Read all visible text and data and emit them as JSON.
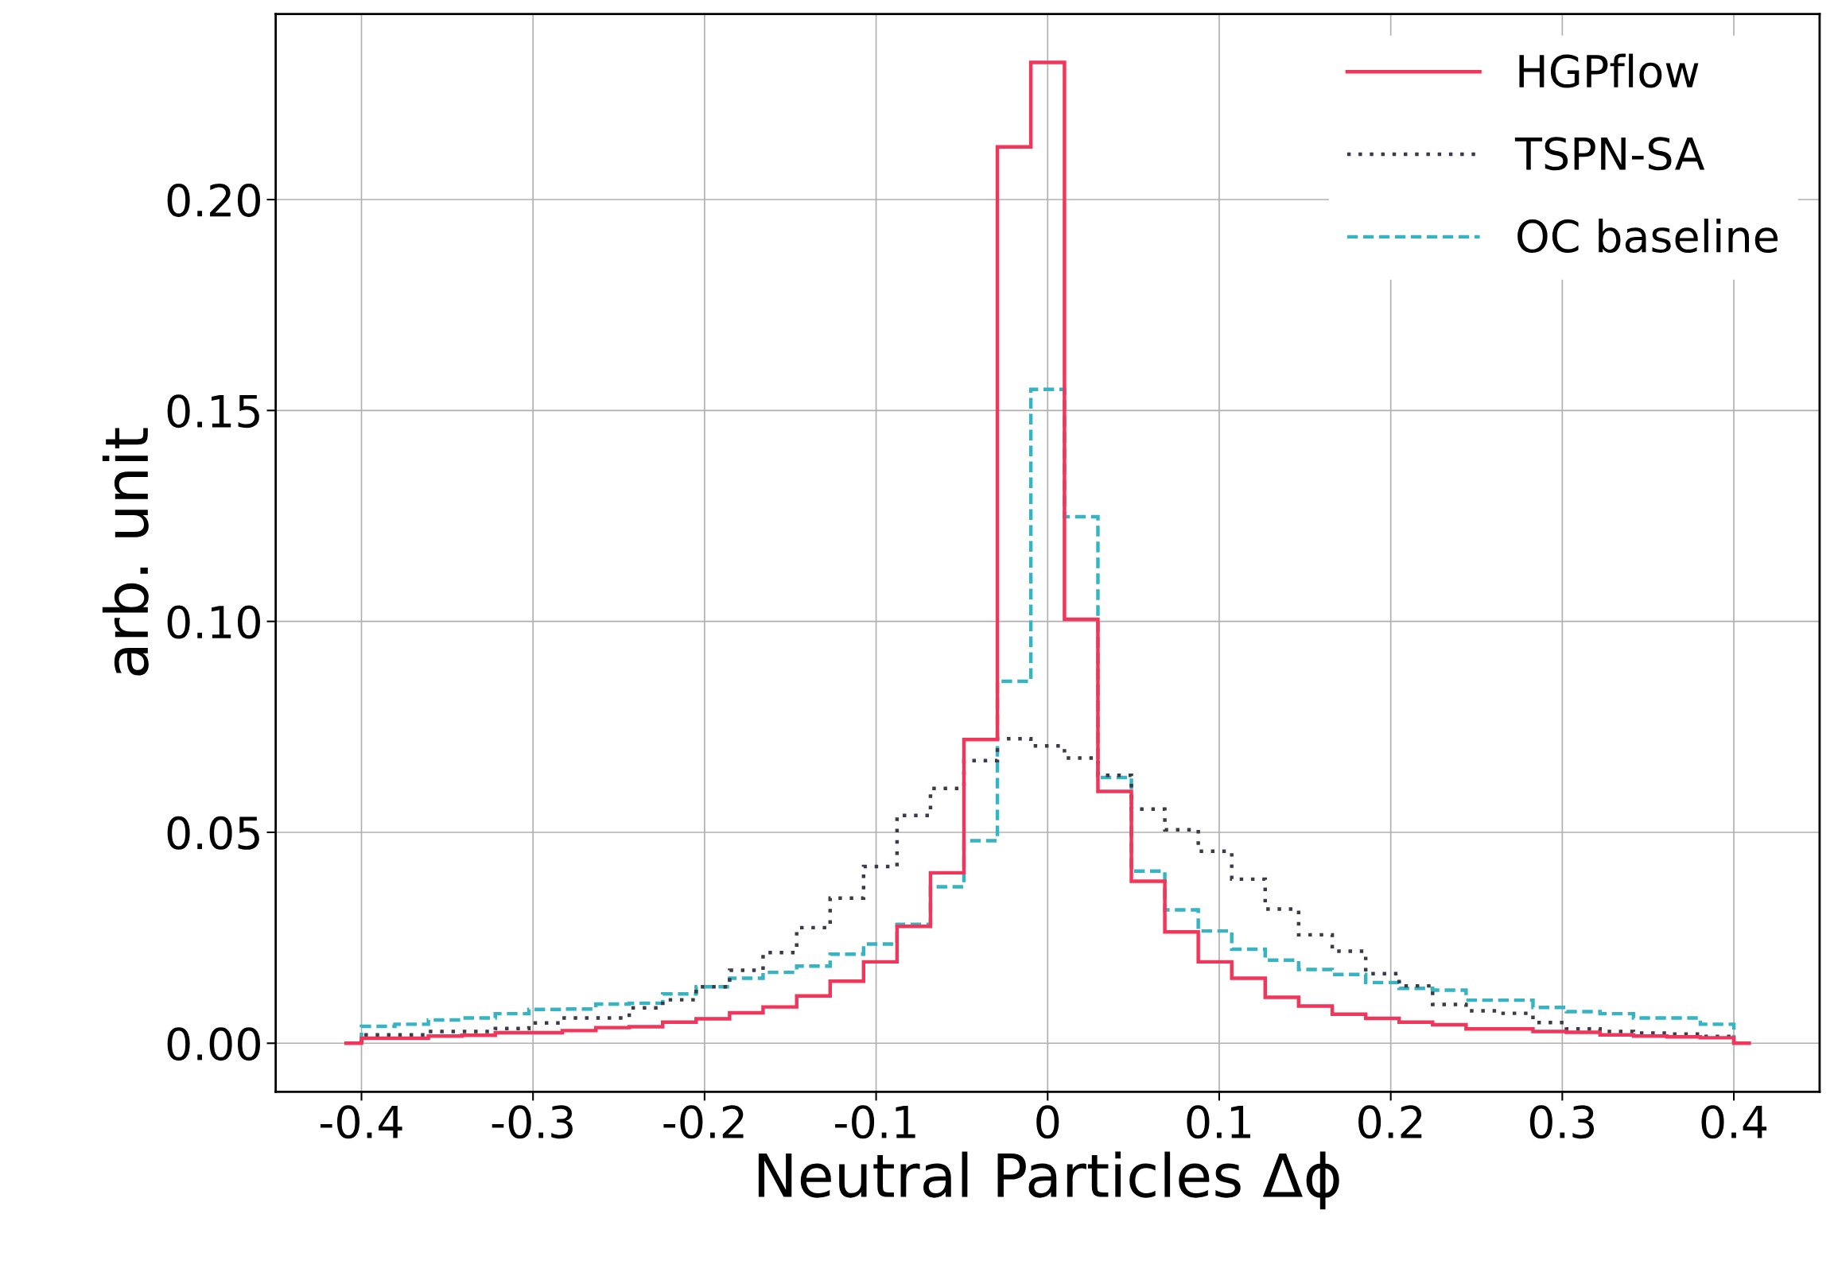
{
  "chart_data": {
    "type": "histogram",
    "xlabel": "Neutral Particles Δϕ",
    "ylabel": "arb. unit",
    "bins": [
      -0.4,
      -0.3805,
      -0.361,
      -0.3415,
      -0.322,
      -0.3024,
      -0.2829,
      -0.2634,
      -0.2439,
      -0.2244,
      -0.2049,
      -0.1854,
      -0.1659,
      -0.1463,
      -0.1268,
      -0.1073,
      -0.0878,
      -0.0683,
      -0.0488,
      -0.0293,
      -0.0098,
      0.0098,
      0.0293,
      0.0488,
      0.0683,
      0.0878,
      0.1073,
      0.1268,
      0.1463,
      0.1659,
      0.1854,
      0.2049,
      0.2244,
      0.2439,
      0.2634,
      0.2829,
      0.3024,
      0.322,
      0.3415,
      0.361,
      0.3805,
      0.4
    ],
    "series": [
      {
        "name": "HGPflow",
        "color": "#f0365a",
        "line_style": "solid",
        "bins": [
          -0.41,
          -0.4,
          -0.3805,
          -0.361,
          -0.3415,
          -0.322,
          -0.3024,
          -0.2829,
          -0.2634,
          -0.2439,
          -0.2244,
          -0.2049,
          -0.1854,
          -0.1659,
          -0.1463,
          -0.1268,
          -0.1073,
          -0.0878,
          -0.0683,
          -0.0488,
          -0.0293,
          -0.0098,
          0.0098,
          0.0293,
          0.0488,
          0.0683,
          0.0878,
          0.1073,
          0.1268,
          0.1463,
          0.1659,
          0.1854,
          0.2049,
          0.2244,
          0.2439,
          0.2634,
          0.2829,
          0.3024,
          0.322,
          0.3415,
          0.361,
          0.3805,
          0.4,
          0.41
        ],
        "values": [
          0,
          0.0012,
          0.0012,
          0.0017,
          0.0019,
          0.0025,
          0.0025,
          0.003,
          0.0037,
          0.0039,
          0.005,
          0.0058,
          0.0072,
          0.0086,
          0.0112,
          0.0147,
          0.0193,
          0.0277,
          0.0404,
          0.072,
          0.2125,
          0.2325,
          0.1005,
          0.0597,
          0.0384,
          0.0264,
          0.0193,
          0.0154,
          0.0109,
          0.0088,
          0.0069,
          0.0059,
          0.005,
          0.0044,
          0.0034,
          0.0034,
          0.0028,
          0.0026,
          0.002,
          0.0017,
          0.0015,
          0.0013,
          0
        ]
      },
      {
        "name": "TSPN-SA",
        "color": "#393b47",
        "line_style": "dotted",
        "values": [
          0.002,
          0.002,
          0.0028,
          0.0028,
          0.0035,
          0.0048,
          0.006,
          0.006,
          0.0084,
          0.0103,
          0.0134,
          0.0173,
          0.0215,
          0.0274,
          0.0344,
          0.0419,
          0.054,
          0.0604,
          0.067,
          0.0722,
          0.0705,
          0.0676,
          0.0635,
          0.0555,
          0.0506,
          0.0455,
          0.0389,
          0.0318,
          0.0257,
          0.0218,
          0.0165,
          0.0136,
          0.0092,
          0.0077,
          0.0071,
          0.0049,
          0.0034,
          0.0028,
          0.0024,
          0.0022,
          0.0016
        ]
      },
      {
        "name": "OC baseline",
        "color": "#36b4c3",
        "line_style": "dashed",
        "values": [
          0.004,
          0.0045,
          0.0055,
          0.006,
          0.007,
          0.008,
          0.0081,
          0.0093,
          0.0095,
          0.0117,
          0.0134,
          0.0154,
          0.0168,
          0.0183,
          0.0211,
          0.0235,
          0.0282,
          0.0371,
          0.048,
          0.0858,
          0.155,
          0.1248,
          0.063,
          0.0408,
          0.0316,
          0.0266,
          0.0223,
          0.0197,
          0.0175,
          0.0163,
          0.0144,
          0.013,
          0.0126,
          0.0102,
          0.0102,
          0.0085,
          0.0075,
          0.007,
          0.006,
          0.006,
          0.0045
        ]
      }
    ],
    "xlim": [
      -0.45,
      0.45
    ],
    "ylim": [
      -0.0115,
      0.244
    ],
    "xticks": [
      -0.4,
      -0.3,
      -0.2,
      -0.1,
      0,
      0.1,
      0.2,
      0.3,
      0.4
    ],
    "yticks": [
      {
        "value": 0,
        "label": "0.00"
      },
      {
        "value": 0.05,
        "label": "0.05"
      },
      {
        "value": 0.1,
        "label": "0.10"
      },
      {
        "value": 0.15,
        "label": "0.15"
      },
      {
        "value": 0.2,
        "label": "0.20"
      }
    ],
    "grid": true,
    "legend": "top right"
  }
}
